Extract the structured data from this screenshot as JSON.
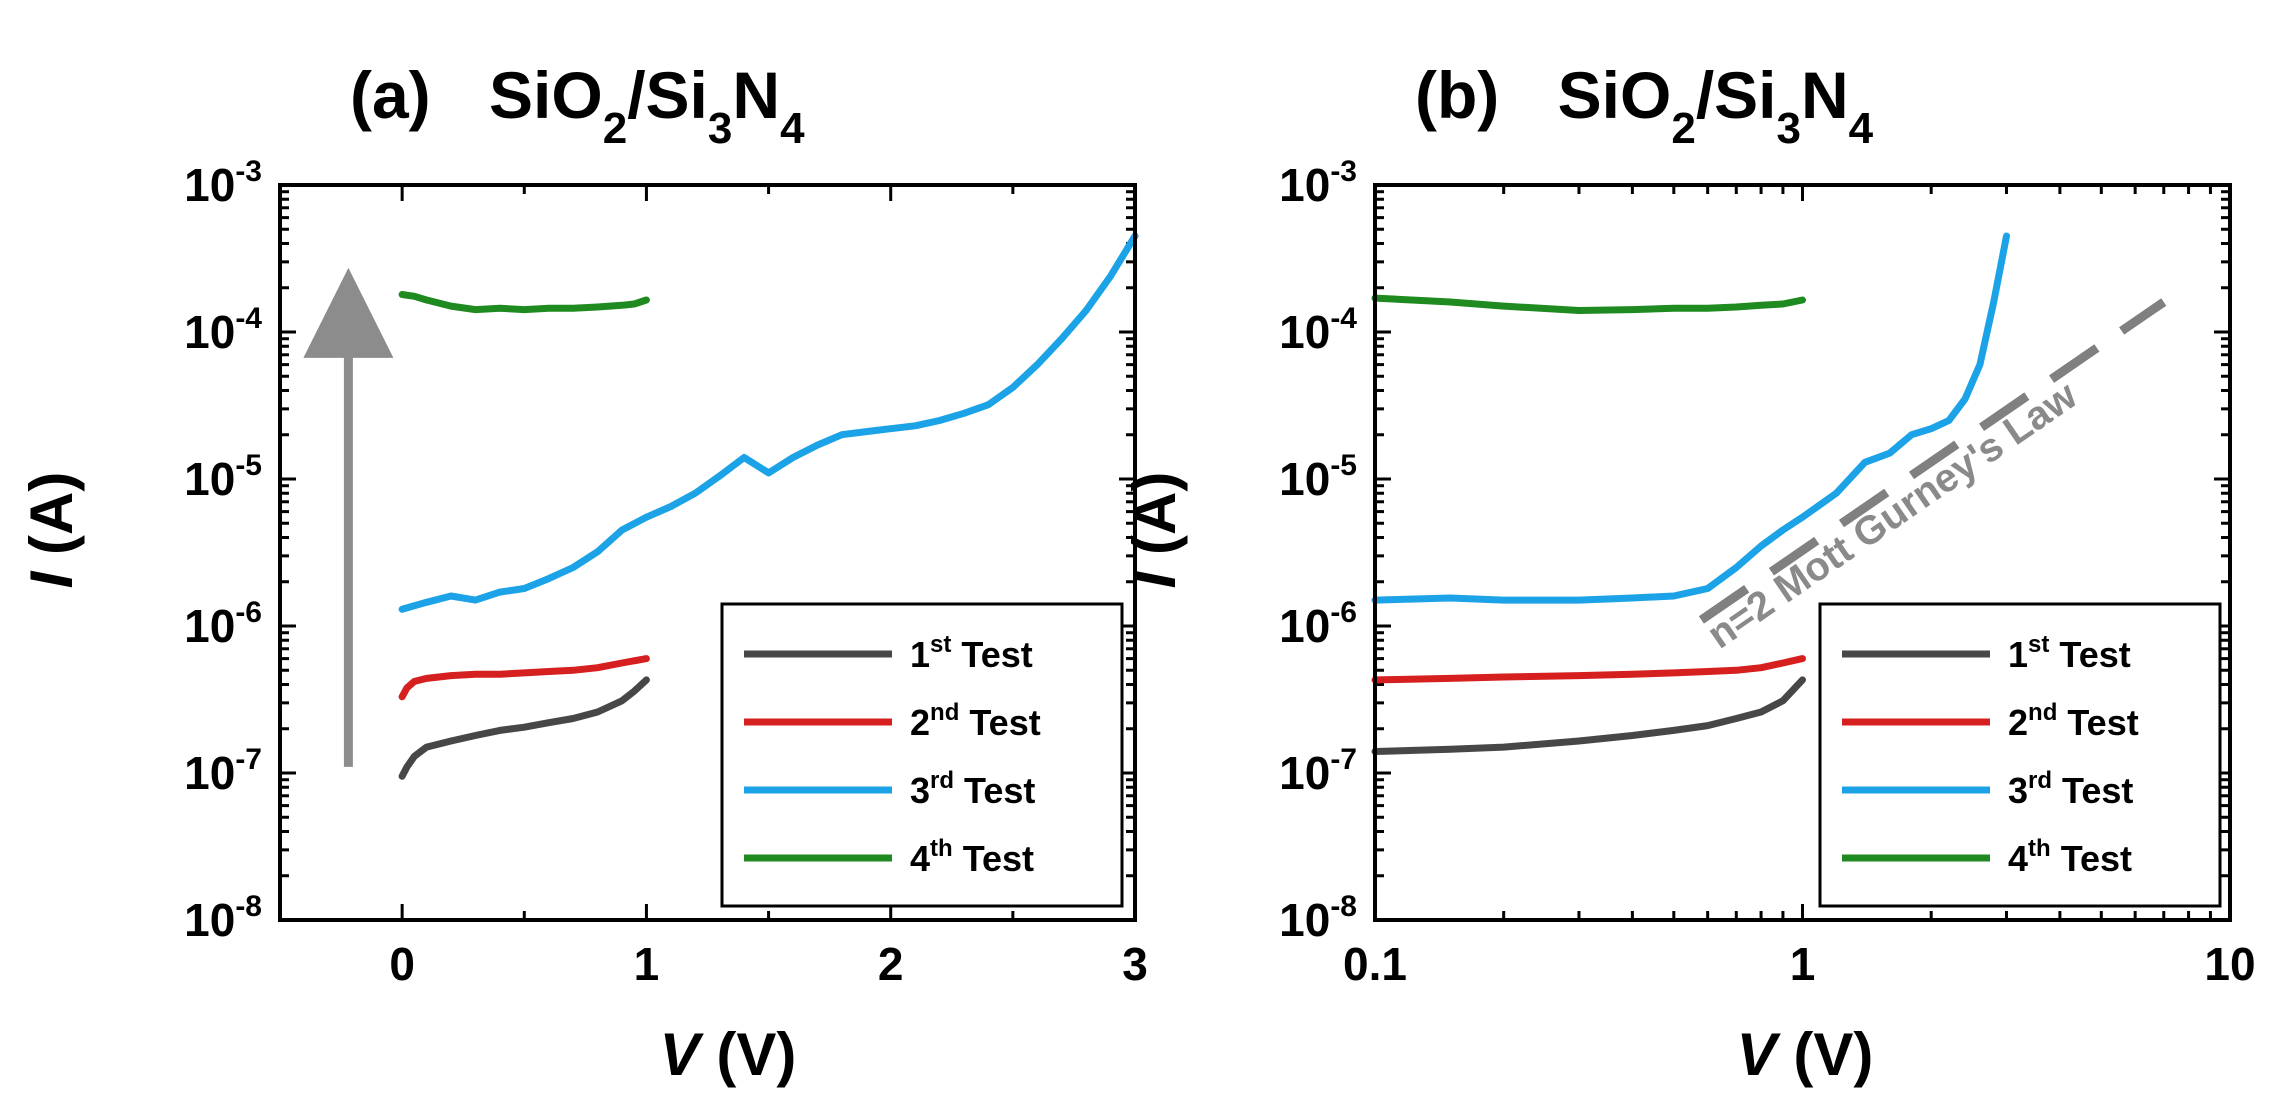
{
  "colors": {
    "test1": "#474747",
    "test2": "#d62020",
    "test3": "#1ca2e6",
    "test4": "#1f8a1f",
    "arrow": "#8c8c8c",
    "fit": "#8c8c8c"
  },
  "chart_data": [
    {
      "type": "line",
      "panel_label": "(a)",
      "title_parts": [
        "SiO",
        "2",
        "/Si",
        "3",
        "N",
        "4"
      ],
      "xlabel_var": "V",
      "xlabel_unit": " (V)",
      "ylabel_var": "I",
      "ylabel_unit": " (A)",
      "xscale": "linear",
      "yscale": "log",
      "xlim": [
        -0.5,
        3
      ],
      "ylim": [
        1e-08,
        0.001
      ],
      "xticks": [
        {
          "v": 0,
          "label": "0"
        },
        {
          "v": 1,
          "label": "1"
        },
        {
          "v": 2,
          "label": "2"
        },
        {
          "v": 3,
          "label": "3"
        }
      ],
      "yticks": [
        {
          "v": -3,
          "base": "10",
          "exp": "-3"
        },
        {
          "v": -4,
          "base": "10",
          "exp": "-4"
        },
        {
          "v": -5,
          "base": "10",
          "exp": "-5"
        },
        {
          "v": -6,
          "base": "10",
          "exp": "-6"
        },
        {
          "v": -7,
          "base": "10",
          "exp": "-7"
        },
        {
          "v": -8,
          "base": "10",
          "exp": "-8"
        }
      ],
      "legend_position": "bottom-right",
      "annotation": {
        "type": "arrow",
        "description": "upward arrow",
        "x": -0.22,
        "from": 1.1e-07,
        "to": 0.000135
      },
      "series": [
        {
          "name": "1",
          "name_sup": "st",
          "name_rest": " Test",
          "color_key": "test1",
          "x": [
            0,
            0.02,
            0.05,
            0.1,
            0.2,
            0.3,
            0.4,
            0.5,
            0.6,
            0.7,
            0.8,
            0.9,
            0.95,
            1.0
          ],
          "y": [
            9.5e-08,
            1.1e-07,
            1.3e-07,
            1.5e-07,
            1.65e-07,
            1.8e-07,
            1.95e-07,
            2.05e-07,
            2.2e-07,
            2.35e-07,
            2.6e-07,
            3.1e-07,
            3.6e-07,
            4.3e-07
          ]
        },
        {
          "name": "2",
          "name_sup": "nd",
          "name_rest": " Test",
          "color_key": "test2",
          "x": [
            0,
            0.02,
            0.05,
            0.1,
            0.2,
            0.3,
            0.4,
            0.5,
            0.6,
            0.7,
            0.8,
            0.9,
            1.0
          ],
          "y": [
            3.3e-07,
            3.8e-07,
            4.2e-07,
            4.4e-07,
            4.6e-07,
            4.7e-07,
            4.7e-07,
            4.8e-07,
            4.9e-07,
            5e-07,
            5.2e-07,
            5.6e-07,
            6e-07
          ]
        },
        {
          "name": "3",
          "name_sup": "rd",
          "name_rest": " Test",
          "color_key": "test3",
          "x": [
            0,
            0.1,
            0.2,
            0.3,
            0.4,
            0.5,
            0.6,
            0.7,
            0.8,
            0.9,
            1.0,
            1.1,
            1.2,
            1.3,
            1.4,
            1.5,
            1.6,
            1.7,
            1.8,
            1.9,
            2.0,
            2.1,
            2.2,
            2.3,
            2.4,
            2.5,
            2.6,
            2.7,
            2.8,
            2.9,
            3.0
          ],
          "y": [
            1.3e-06,
            1.45e-06,
            1.6e-06,
            1.5e-06,
            1.7e-06,
            1.8e-06,
            2.1e-06,
            2.5e-06,
            3.2e-06,
            4.5e-06,
            5.5e-06,
            6.5e-06,
            8e-06,
            1.05e-05,
            1.4e-05,
            1.1e-05,
            1.4e-05,
            1.7e-05,
            2e-05,
            2.1e-05,
            2.2e-05,
            2.3e-05,
            2.5e-05,
            2.8e-05,
            3.2e-05,
            4.2e-05,
            6e-05,
            9e-05,
            0.00014,
            0.00024,
            0.00045
          ]
        },
        {
          "name": "4",
          "name_sup": "th",
          "name_rest": " Test",
          "color_key": "test4",
          "x": [
            0,
            0.05,
            0.1,
            0.2,
            0.3,
            0.4,
            0.5,
            0.6,
            0.7,
            0.8,
            0.9,
            0.95,
            1.0
          ],
          "y": [
            0.00018,
            0.000175,
            0.000165,
            0.00015,
            0.000142,
            0.000145,
            0.000142,
            0.000145,
            0.000145,
            0.000148,
            0.000152,
            0.000155,
            0.000165
          ]
        }
      ]
    },
    {
      "type": "line",
      "panel_label": "(b)",
      "title_parts": [
        "SiO",
        "2",
        "/Si",
        "3",
        "N",
        "4"
      ],
      "xlabel_var": "V",
      "xlabel_unit": " (V)",
      "ylabel_var": "I",
      "ylabel_unit": " (A)",
      "xscale": "log",
      "yscale": "log",
      "xlim": [
        0.1,
        10
      ],
      "ylim": [
        1e-08,
        0.001
      ],
      "xticks": [
        {
          "v": -1,
          "label": "0.1"
        },
        {
          "v": 0,
          "label": "1"
        },
        {
          "v": 1,
          "label": "10"
        }
      ],
      "yticks": [
        {
          "v": -3,
          "base": "10",
          "exp": "-3"
        },
        {
          "v": -4,
          "base": "10",
          "exp": "-4"
        },
        {
          "v": -5,
          "base": "10",
          "exp": "-5"
        },
        {
          "v": -6,
          "base": "10",
          "exp": "-6"
        },
        {
          "v": -7,
          "base": "10",
          "exp": "-7"
        },
        {
          "v": -8,
          "base": "10",
          "exp": "-8"
        }
      ],
      "legend_position": "bottom-right",
      "annotation": {
        "type": "fit_line",
        "text": "n=2 Mott Gurney's Law",
        "x": [
          0.58,
          7.0
        ],
        "y": [
          1.1e-06,
          0.00016
        ]
      },
      "series": [
        {
          "name": "1",
          "name_sup": "st",
          "name_rest": " Test",
          "color_key": "test1",
          "x": [
            0.1,
            0.15,
            0.2,
            0.3,
            0.4,
            0.5,
            0.6,
            0.7,
            0.8,
            0.9,
            1.0
          ],
          "y": [
            1.4e-07,
            1.45e-07,
            1.5e-07,
            1.65e-07,
            1.8e-07,
            1.95e-07,
            2.1e-07,
            2.35e-07,
            2.6e-07,
            3.1e-07,
            4.3e-07
          ]
        },
        {
          "name": "2",
          "name_sup": "nd",
          "name_rest": " Test",
          "color_key": "test2",
          "x": [
            0.1,
            0.15,
            0.2,
            0.3,
            0.4,
            0.5,
            0.6,
            0.7,
            0.8,
            0.9,
            1.0
          ],
          "y": [
            4.3e-07,
            4.4e-07,
            4.5e-07,
            4.6e-07,
            4.7e-07,
            4.8e-07,
            4.9e-07,
            5e-07,
            5.2e-07,
            5.6e-07,
            6e-07
          ]
        },
        {
          "name": "3",
          "name_sup": "rd",
          "name_rest": " Test",
          "color_key": "test3",
          "x": [
            0.1,
            0.15,
            0.2,
            0.3,
            0.4,
            0.5,
            0.6,
            0.7,
            0.8,
            0.9,
            1.0,
            1.2,
            1.4,
            1.6,
            1.8,
            2.0,
            2.2,
            2.4,
            2.6,
            2.8,
            3.0
          ],
          "y": [
            1.5e-06,
            1.55e-06,
            1.5e-06,
            1.5e-06,
            1.55e-06,
            1.6e-06,
            1.8e-06,
            2.5e-06,
            3.5e-06,
            4.5e-06,
            5.5e-06,
            8e-06,
            1.3e-05,
            1.5e-05,
            2e-05,
            2.2e-05,
            2.5e-05,
            3.5e-05,
            6e-05,
            0.00016,
            0.00045
          ]
        },
        {
          "name": "4",
          "name_sup": "th",
          "name_rest": " Test",
          "color_key": "test4",
          "x": [
            0.1,
            0.15,
            0.2,
            0.3,
            0.4,
            0.5,
            0.6,
            0.7,
            0.8,
            0.9,
            1.0
          ],
          "y": [
            0.00017,
            0.00016,
            0.00015,
            0.00014,
            0.000142,
            0.000145,
            0.000145,
            0.000148,
            0.000152,
            0.000155,
            0.000165
          ]
        }
      ]
    }
  ]
}
